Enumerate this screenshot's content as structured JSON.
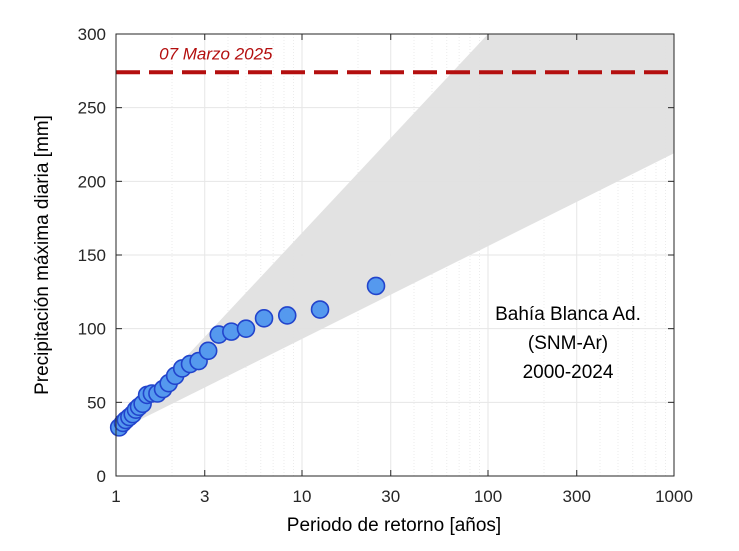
{
  "chart_data": {
    "type": "scatter",
    "xscale": "log",
    "xlim": [
      1,
      1000
    ],
    "ylim": [
      0,
      300
    ],
    "xlabel": "Periodo de retorno [años]",
    "ylabel": "Precipitación máxima diaria [mm]",
    "xticks": [
      1,
      3,
      10,
      30,
      100,
      300,
      1000
    ],
    "xtick_labels": [
      "1",
      "3",
      "10",
      "30",
      "100",
      "300",
      "1000"
    ],
    "yticks": [
      0,
      50,
      100,
      150,
      200,
      250,
      300
    ],
    "ytick_labels": [
      "0",
      "50",
      "100",
      "150",
      "200",
      "250",
      "300"
    ],
    "grid": true,
    "points": [
      {
        "x": 1.04,
        "y": 33
      },
      {
        "x": 1.09,
        "y": 36
      },
      {
        "x": 1.13,
        "y": 38
      },
      {
        "x": 1.18,
        "y": 40
      },
      {
        "x": 1.23,
        "y": 42
      },
      {
        "x": 1.28,
        "y": 45
      },
      {
        "x": 1.33,
        "y": 47
      },
      {
        "x": 1.39,
        "y": 49
      },
      {
        "x": 1.47,
        "y": 55
      },
      {
        "x": 1.56,
        "y": 56
      },
      {
        "x": 1.67,
        "y": 56
      },
      {
        "x": 1.79,
        "y": 59
      },
      {
        "x": 1.92,
        "y": 63
      },
      {
        "x": 2.08,
        "y": 68
      },
      {
        "x": 2.27,
        "y": 73
      },
      {
        "x": 2.5,
        "y": 76
      },
      {
        "x": 2.78,
        "y": 78
      },
      {
        "x": 3.13,
        "y": 85
      },
      {
        "x": 3.57,
        "y": 96
      },
      {
        "x": 4.17,
        "y": 98
      },
      {
        "x": 5.0,
        "y": 100
      },
      {
        "x": 6.25,
        "y": 107
      },
      {
        "x": 8.33,
        "y": 109
      },
      {
        "x": 12.5,
        "y": 113
      },
      {
        "x": 25.0,
        "y": 129
      }
    ],
    "confidence_band": {
      "lower": [
        [
          1,
          30
        ],
        [
          1000,
          219
        ]
      ],
      "upper": [
        [
          1,
          30
        ],
        [
          100,
          300
        ],
        [
          1000,
          300
        ]
      ]
    },
    "reference_line": {
      "y": 274,
      "label": "07 Marzo 2025"
    },
    "annotation": [
      "Bahía Blanca Ad.",
      "(SNM-Ar)",
      "2000-2024"
    ],
    "colors": {
      "marker_fill": "#5599ee",
      "marker_stroke": "#2244cc",
      "band": "#e0e0e0",
      "reference_line": "#b40f0f",
      "grid": "#e6e6e6",
      "axis": "#262626"
    }
  }
}
